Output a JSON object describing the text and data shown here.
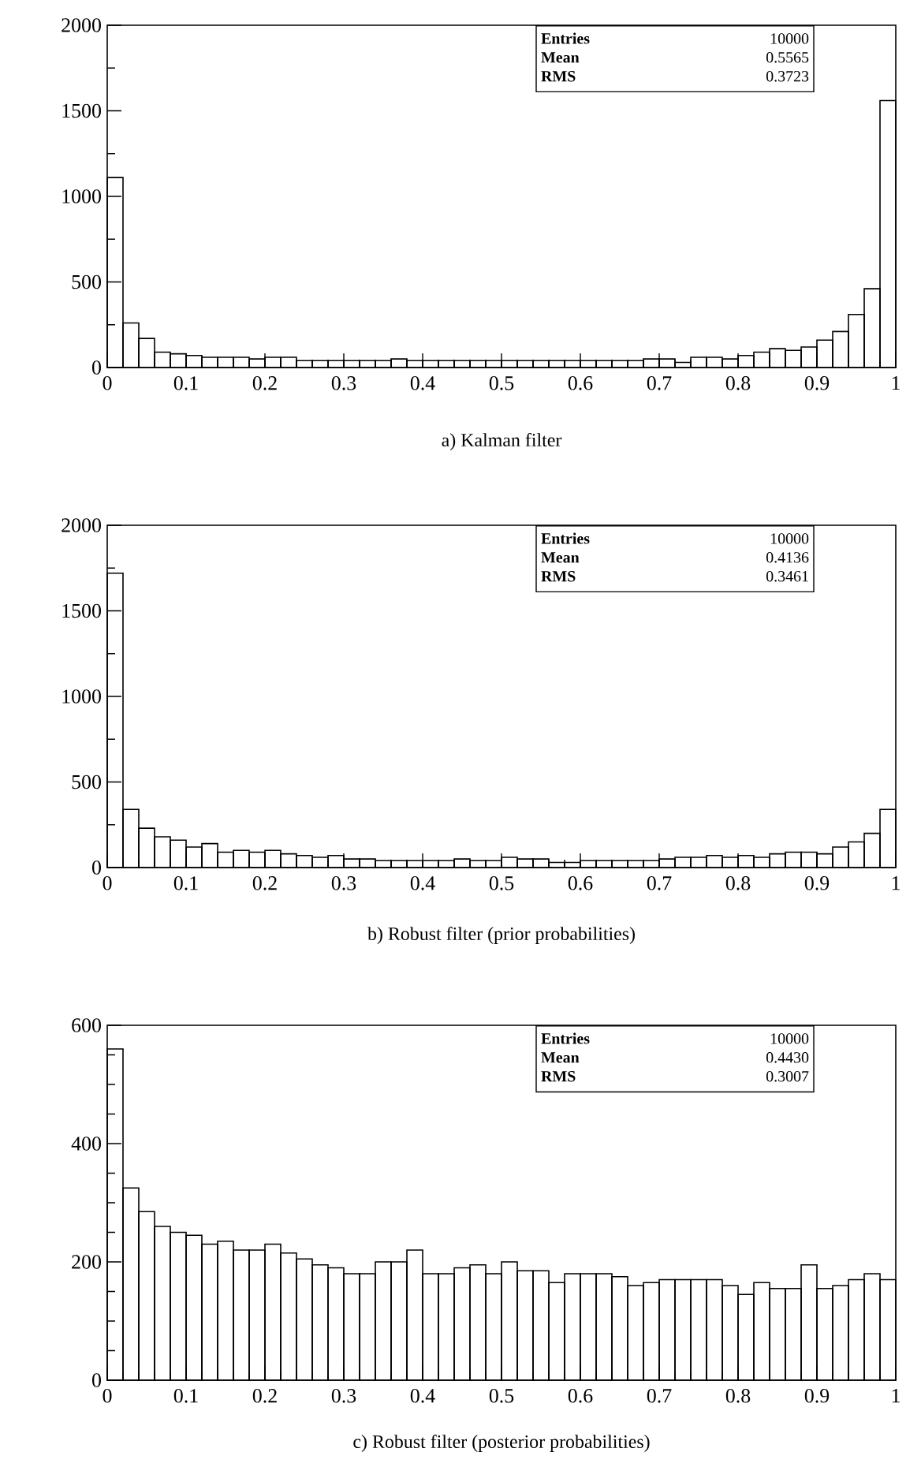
{
  "chart_data": [
    {
      "type": "histogram",
      "title": "a) Kalman filter",
      "color": "#000000",
      "bins": [
        0,
        0.02,
        0.04,
        0.06,
        0.08,
        0.1,
        0.12,
        0.14,
        0.16,
        0.18,
        0.2,
        0.22,
        0.24,
        0.26,
        0.28,
        0.3,
        0.32,
        0.34,
        0.36,
        0.38,
        0.4,
        0.42,
        0.44,
        0.46,
        0.48,
        0.5,
        0.52,
        0.54,
        0.56,
        0.58,
        0.6,
        0.62,
        0.64,
        0.66,
        0.68,
        0.7,
        0.72,
        0.74,
        0.76,
        0.78,
        0.8,
        0.82,
        0.84,
        0.86,
        0.88,
        0.9,
        0.92,
        0.94,
        0.96,
        0.98,
        1
      ],
      "values": [
        1110,
        260,
        170,
        90,
        80,
        70,
        60,
        60,
        60,
        50,
        60,
        60,
        40,
        40,
        40,
        40,
        40,
        40,
        50,
        40,
        40,
        40,
        40,
        40,
        40,
        40,
        40,
        40,
        40,
        40,
        40,
        40,
        40,
        40,
        50,
        50,
        30,
        60,
        60,
        50,
        70,
        90,
        110,
        100,
        120,
        160,
        210,
        310,
        460,
        1560
      ],
      "xlim": [
        0,
        1
      ],
      "ylim": [
        0,
        2000
      ],
      "xticks": [
        0,
        0.1,
        0.2,
        0.3,
        0.4,
        0.5,
        0.6,
        0.7,
        0.8,
        0.9,
        1
      ],
      "yticks": [
        0,
        500,
        1000,
        1500,
        2000
      ],
      "annotations": [
        "Entries",
        "10000",
        "Mean",
        "0.5565",
        "RMS",
        "0.3723"
      ]
    },
    {
      "type": "histogram",
      "title": "b) Robust filter (prior probabilities)",
      "color": "#000000",
      "bins": [
        0,
        0.02,
        0.04,
        0.06,
        0.08,
        0.1,
        0.12,
        0.14,
        0.16,
        0.18,
        0.2,
        0.22,
        0.24,
        0.26,
        0.28,
        0.3,
        0.32,
        0.34,
        0.36,
        0.38,
        0.4,
        0.42,
        0.44,
        0.46,
        0.48,
        0.5,
        0.52,
        0.54,
        0.56,
        0.58,
        0.6,
        0.62,
        0.64,
        0.66,
        0.68,
        0.7,
        0.72,
        0.74,
        0.76,
        0.78,
        0.8,
        0.82,
        0.84,
        0.86,
        0.88,
        0.9,
        0.92,
        0.94,
        0.96,
        0.98,
        1
      ],
      "values": [
        1720,
        340,
        230,
        180,
        160,
        120,
        140,
        90,
        100,
        90,
        100,
        80,
        70,
        60,
        70,
        50,
        50,
        40,
        40,
        40,
        40,
        40,
        50,
        40,
        40,
        60,
        50,
        50,
        30,
        30,
        40,
        40,
        40,
        40,
        40,
        50,
        60,
        60,
        70,
        60,
        70,
        60,
        80,
        90,
        90,
        80,
        120,
        150,
        200,
        340
      ],
      "xlim": [
        0,
        1
      ],
      "ylim": [
        0,
        2000
      ],
      "xticks": [
        0,
        0.1,
        0.2,
        0.3,
        0.4,
        0.5,
        0.6,
        0.7,
        0.8,
        0.9,
        1
      ],
      "yticks": [
        0,
        500,
        1000,
        1500,
        2000
      ],
      "annotations": [
        "Entries",
        "10000",
        "Mean",
        "0.4136",
        "RMS",
        "0.3461"
      ]
    },
    {
      "type": "histogram",
      "title": "c) Robust filter (posterior probabilities)",
      "color": "#000000",
      "bins": [
        0,
        0.02,
        0.04,
        0.06,
        0.08,
        0.1,
        0.12,
        0.14,
        0.16,
        0.18,
        0.2,
        0.22,
        0.24,
        0.26,
        0.28,
        0.3,
        0.32,
        0.34,
        0.36,
        0.38,
        0.4,
        0.42,
        0.44,
        0.46,
        0.48,
        0.5,
        0.52,
        0.54,
        0.56,
        0.58,
        0.6,
        0.62,
        0.64,
        0.66,
        0.68,
        0.7,
        0.72,
        0.74,
        0.76,
        0.78,
        0.8,
        0.82,
        0.84,
        0.86,
        0.88,
        0.9,
        0.92,
        0.94,
        0.96,
        0.98,
        1
      ],
      "values": [
        560,
        325,
        285,
        260,
        250,
        245,
        230,
        235,
        220,
        220,
        230,
        215,
        205,
        195,
        190,
        180,
        180,
        200,
        200,
        220,
        180,
        180,
        190,
        195,
        180,
        200,
        185,
        185,
        165,
        180,
        180,
        180,
        175,
        160,
        165,
        170,
        170,
        170,
        170,
        160,
        145,
        165,
        155,
        155,
        195,
        155,
        160,
        170,
        180,
        170
      ],
      "xlim": [
        0,
        1
      ],
      "ylim": [
        0,
        600
      ],
      "xticks": [
        0,
        0.1,
        0.2,
        0.3,
        0.4,
        0.5,
        0.6,
        0.7,
        0.8,
        0.9,
        1
      ],
      "yticks": [
        0,
        200,
        400,
        600
      ],
      "annotations": [
        "Entries",
        "10000",
        "Mean",
        "0.4430",
        "RMS",
        "0.3007"
      ]
    }
  ]
}
